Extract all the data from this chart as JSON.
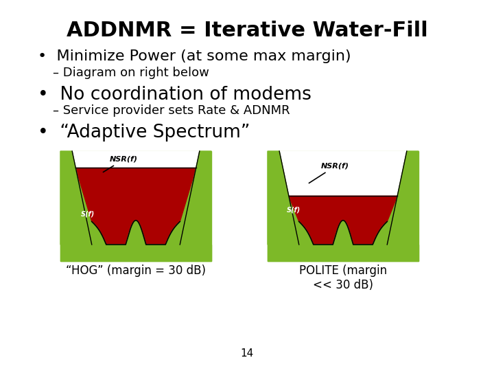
{
  "title": "ADDNMR = Iterative Water-Fill",
  "bullet1": "Minimize Power (at some max margin)",
  "sub1": "– Diagram on right below",
  "bullet2": "No coordination of modems",
  "sub2": "– Service provider sets Rate & ADNMR",
  "bullet3": "“Adaptive Spectrum”",
  "label_hog": "“HOG” (margin = 30 dB)",
  "label_polite": "POLITE (margin\n<< 30 dB)",
  "page_num": "14",
  "bg_color": "#ffffff",
  "green_color": "#7db928",
  "red_color": "#aa0000",
  "title_fontsize": 22,
  "bullet1_fontsize": 16,
  "bullet2_fontsize": 19,
  "bullet3_fontsize": 19,
  "sub_fontsize": 13,
  "diagram_label_fontsize": 12
}
